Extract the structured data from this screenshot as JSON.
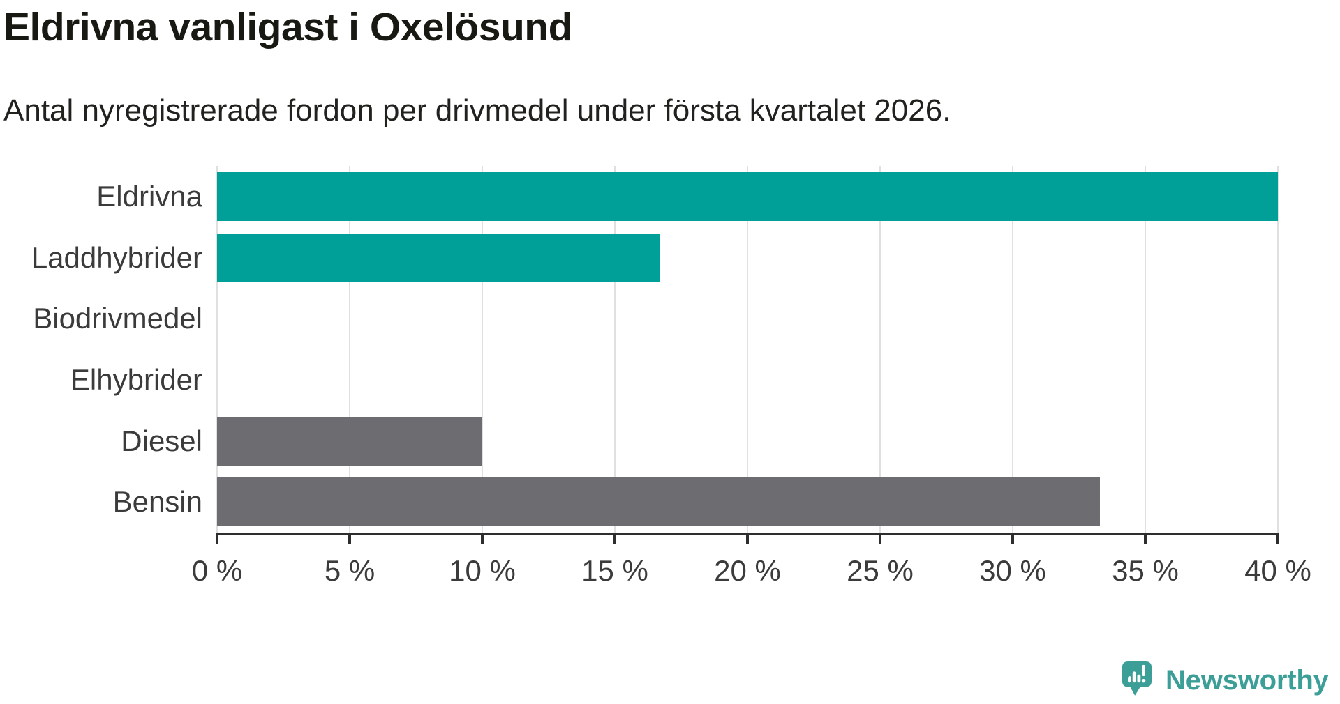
{
  "header": {
    "title": "Eldrivna vanligast i Oxelösund",
    "subtitle": "Antal nyregistrerade fordon per drivmedel under första kvartalet 2026."
  },
  "chart_data": {
    "type": "bar",
    "orientation": "horizontal",
    "title": "Eldrivna vanligast i Oxelösund",
    "subtitle": "Antal nyregistrerade fordon per drivmedel under första kvartalet 2026.",
    "categories": [
      "Eldrivna",
      "Laddhybrider",
      "Biodrivmedel",
      "Elhybrider",
      "Diesel",
      "Bensin"
    ],
    "values": [
      40,
      16.7,
      0,
      0,
      10,
      33.3
    ],
    "unit": "%",
    "xlim": [
      0,
      40
    ],
    "xticks": [
      0,
      5,
      10,
      15,
      20,
      25,
      30,
      35,
      40
    ],
    "xtick_labels": [
      "0 %",
      "5 %",
      "10 %",
      "15 %",
      "20 %",
      "25 %",
      "30 %",
      "35 %",
      "40 %"
    ],
    "bar_colors": [
      "#00a099",
      "#00a099",
      "#00a099",
      "#00a099",
      "#6c6c71",
      "#6c6c71"
    ],
    "grid": true,
    "legend": false,
    "accent_color": "#00a099",
    "muted_color": "#6c6c71",
    "gridline_color": "#e0e0e0",
    "axis_color": "#2e2e2e",
    "label_color": "#3b3b3b"
  },
  "branding": {
    "logo_text": "Newsworthy",
    "logo_color": "#3b9e97",
    "logo_icon": "speech-bubble-bar-chart-exclamation"
  }
}
